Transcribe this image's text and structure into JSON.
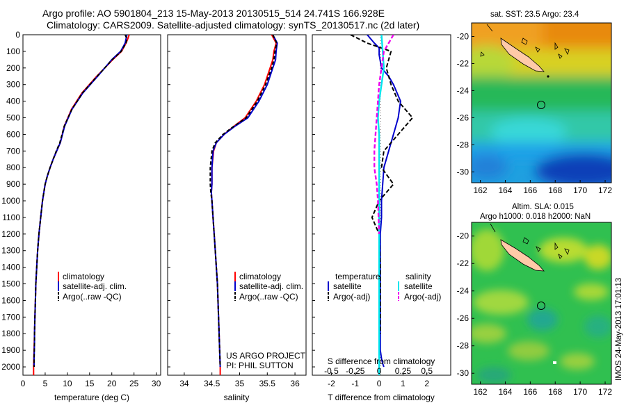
{
  "header": {
    "line1": "Argo profile: AO 5901804_213 15-May-2013 20130515_514 24.741S 166.928E",
    "line2": "Climatology: CARS2009. Satellite-adjusted climatology: synTS_20130517.nc (2d later)"
  },
  "colors": {
    "climatology": "#ff0000",
    "satellite": "#0000cc",
    "argo": "#000000",
    "salinity_sat": "#00e5ee",
    "salinity_argo": "#ee00ee"
  },
  "depth_axis": {
    "ticks": [
      "0",
      "100",
      "200",
      "300",
      "400",
      "500",
      "600",
      "700",
      "800",
      "900",
      "1000",
      "1100",
      "1200",
      "1300",
      "1400",
      "1500",
      "1600",
      "1700",
      "1800",
      "1900",
      "2000"
    ],
    "ylim": [
      0,
      2050
    ]
  },
  "legend": {
    "climatology": "climatology",
    "satellite": "satellite-adj. clim.",
    "argo": "Argo(..raw -QC)"
  },
  "diff_legend": {
    "temperature_title": "temperature",
    "salinity_title": "salinity",
    "t_sat": "satellite",
    "t_argo": "Argo(-adj)",
    "s_sat": "satellite",
    "s_argo": "Argo(-adj)"
  },
  "credits": {
    "project": "US ARGO PROJECT",
    "pi": "PI: PHIL SUTTON"
  },
  "footer": "IMOS 24-May-2013 17:01:13",
  "map_top": {
    "title": "sat. SST: 23.5 Argo: 23.4"
  },
  "map_bottom": {
    "title1": "Altim. SLA: 0.015",
    "title2": "Argo h1000: 0.018 h2000: NaN"
  },
  "chart_data": [
    {
      "type": "line",
      "xlabel": "temperature (deg C)",
      "ylabel": "",
      "xlim": [
        0,
        31
      ],
      "ylim": [
        2050,
        0
      ],
      "xticks": [
        "0",
        "5",
        "10",
        "15",
        "20",
        "25",
        "30"
      ],
      "xtick_values": [
        0,
        5,
        10,
        15,
        20,
        25,
        30
      ],
      "grid": false,
      "legend_position": "bottom-right",
      "series": [
        {
          "name": "climatology",
          "x": [
            23.9,
            23.6,
            23.2,
            22.2,
            20.2,
            16.6,
            13.3,
            10.9,
            9.3,
            8.4,
            7.6,
            6.8,
            6.1,
            5.5,
            5.0,
            4.4,
            4.0,
            3.6,
            3.3,
            3.1,
            2.9,
            2.8,
            2.7,
            2.6,
            2.55,
            2.5,
            2.45,
            2.4,
            2.4
          ],
          "y": [
            0,
            25,
            50,
            100,
            150,
            250,
            350,
            450,
            550,
            650,
            700,
            750,
            800,
            850,
            900,
            1000,
            1100,
            1200,
            1300,
            1400,
            1500,
            1600,
            1700,
            1800,
            1850,
            1900,
            1950,
            2000,
            2050
          ]
        },
        {
          "name": "satellite-adj. clim.",
          "x": [
            23.4,
            23.2,
            23.0,
            22.0,
            20.0,
            16.8,
            13.5,
            11.0,
            9.4,
            8.4,
            7.6,
            6.8,
            6.1,
            5.5,
            5.0,
            4.4,
            4.0,
            3.6,
            3.3,
            3.1,
            2.9,
            2.8,
            2.7,
            2.6,
            2.6,
            2.55,
            2.5,
            2.5
          ],
          "y": [
            0,
            25,
            50,
            100,
            150,
            250,
            350,
            450,
            550,
            650,
            700,
            750,
            800,
            850,
            900,
            1000,
            1100,
            1200,
            1300,
            1400,
            1500,
            1600,
            1700,
            1800,
            1850,
            1900,
            1950,
            2000
          ]
        },
        {
          "name": "Argo(..raw -QC)",
          "x": [
            23.0,
            23.4,
            23.2,
            22.1,
            20.1,
            16.7,
            13.4,
            11.0,
            9.3,
            8.3,
            7.5,
            6.8,
            6.1,
            5.5,
            5.0,
            4.4,
            4.0,
            3.6,
            3.3,
            3.1,
            2.9,
            2.8,
            2.7,
            2.6,
            2.6,
            2.55,
            2.5,
            2.5
          ],
          "y": [
            0,
            25,
            50,
            100,
            150,
            250,
            350,
            450,
            550,
            650,
            700,
            750,
            800,
            850,
            900,
            1000,
            1100,
            1200,
            1300,
            1400,
            1500,
            1600,
            1700,
            1800,
            1850,
            1900,
            1950,
            2000
          ]
        }
      ]
    },
    {
      "type": "line",
      "xlabel": "salinity",
      "ylabel": "",
      "xlim": [
        33.7,
        36.2
      ],
      "ylim": [
        2050,
        0
      ],
      "xticks": [
        "34",
        "34.5",
        "35",
        "35.5",
        "36"
      ],
      "xtick_values": [
        34,
        34.5,
        35,
        35.5,
        36
      ],
      "grid": false,
      "legend_position": "bottom-right",
      "series": [
        {
          "name": "climatology",
          "x": [
            35.58,
            35.66,
            35.62,
            35.6,
            35.55,
            35.45,
            35.3,
            35.1,
            34.9,
            34.72,
            34.58,
            34.53,
            34.5,
            34.5,
            34.49,
            34.5,
            34.52,
            34.54,
            34.56,
            34.58,
            34.6,
            34.61,
            34.62,
            34.63,
            34.64,
            34.65,
            34.65
          ],
          "y": [
            0,
            50,
            100,
            150,
            200,
            300,
            400,
            500,
            550,
            600,
            650,
            700,
            800,
            900,
            950,
            1000,
            1100,
            1200,
            1300,
            1400,
            1500,
            1600,
            1700,
            1800,
            1900,
            2000,
            2050
          ]
        },
        {
          "name": "satellite-adj. clim.",
          "x": [
            35.6,
            35.68,
            35.66,
            35.65,
            35.6,
            35.5,
            35.35,
            35.15,
            34.92,
            34.72,
            34.58,
            34.52,
            34.5,
            34.5,
            34.49,
            34.5,
            34.52,
            34.54,
            34.56,
            34.58,
            34.6,
            34.61,
            34.62,
            34.63,
            34.64,
            34.65
          ],
          "y": [
            0,
            50,
            100,
            150,
            200,
            300,
            400,
            500,
            550,
            600,
            650,
            700,
            800,
            900,
            950,
            1000,
            1100,
            1200,
            1300,
            1400,
            1500,
            1600,
            1700,
            1800,
            1900,
            2000
          ]
        },
        {
          "name": "Argo(..raw -QC)",
          "x": [
            35.6,
            35.67,
            35.64,
            35.62,
            35.58,
            35.47,
            35.32,
            35.12,
            34.9,
            34.7,
            34.56,
            34.5,
            34.47,
            34.47,
            34.48,
            34.5,
            34.52,
            34.54,
            34.56,
            34.58,
            34.6,
            34.61,
            34.62,
            34.63,
            34.64,
            34.65
          ],
          "y": [
            0,
            50,
            100,
            150,
            200,
            300,
            400,
            500,
            550,
            600,
            650,
            700,
            800,
            900,
            950,
            1000,
            1100,
            1200,
            1300,
            1400,
            1500,
            1600,
            1700,
            1800,
            1900,
            2000
          ]
        }
      ]
    },
    {
      "type": "line",
      "xlabel": "T difference from climatology",
      "ylabel": "",
      "xlabel_top": "S difference from climatology",
      "xlim": [
        -2.8,
        3.0
      ],
      "ylim": [
        2050,
        0
      ],
      "xticks": [
        "-2",
        "-1",
        "0",
        "1",
        "2"
      ],
      "xtick_values": [
        -2,
        -1,
        0,
        1,
        2
      ],
      "sticks_labels": [
        "-0.5",
        "-0.25",
        "0",
        "0.25",
        "0.5"
      ],
      "sticks_t_positions": [
        -2,
        -1,
        0,
        1,
        2
      ],
      "grid": false,
      "legend_position": "bottom-right",
      "series": [
        {
          "name": "temperature satellite",
          "x": [
            -0.5,
            -0.2,
            0.0,
            0.0,
            0.1,
            0.4,
            0.6,
            0.9,
            0.8,
            0.6,
            0.4,
            0.2,
            0.15,
            0.1,
            0.1,
            0.05,
            0.05,
            0.05,
            0.05,
            0.05,
            0.05,
            0.05,
            0.05,
            0.1,
            0.15,
            0.2
          ],
          "y": [
            0,
            50,
            80,
            120,
            200,
            250,
            300,
            400,
            500,
            600,
            700,
            800,
            900,
            1000,
            1100,
            1200,
            1300,
            1400,
            1500,
            1600,
            1700,
            1800,
            1900,
            1950,
            1980,
            2000
          ]
        },
        {
          "name": "temperature Argo(-adj)",
          "x": [
            -1.2,
            -0.5,
            0.5,
            0.4,
            0.3,
            0.5,
            0.8,
            1.4,
            0.8,
            0.2,
            0.1,
            0.6,
            0.0,
            -0.3,
            0.0,
            0.05,
            0.05,
            0.05
          ],
          "y": [
            0,
            50,
            100,
            150,
            200,
            300,
            400,
            500,
            600,
            700,
            800,
            900,
            1000,
            1100,
            1200,
            1400,
            1600,
            1800
          ]
        },
        {
          "name": "salinity satellite",
          "x": [
            0.1,
            0.15,
            0.2,
            0.1,
            0.0,
            -0.05,
            0.0,
            0.0,
            0.0,
            0.0,
            0.0,
            0.0,
            0.0,
            0.0,
            0.0,
            0.0,
            0.0
          ],
          "y": [
            0,
            100,
            200,
            300,
            400,
            500,
            600,
            700,
            800,
            900,
            1000,
            1200,
            1400,
            1600,
            1800,
            1950,
            2050
          ]
        },
        {
          "name": "salinity Argo(-adj)",
          "x": [
            0.6,
            0.4,
            0.2,
            0.1,
            0.0,
            -0.1,
            -0.2,
            -0.2,
            -0.1,
            -0.05,
            0.0
          ],
          "y": [
            0,
            50,
            100,
            200,
            300,
            500,
            700,
            800,
            900,
            1000,
            1200
          ]
        }
      ]
    },
    {
      "type": "heatmap",
      "title": "sat. SST: 23.5 Argo: 23.4",
      "xlim": [
        161.3,
        172.5
      ],
      "ylim": [
        -30.8,
        -19.0
      ],
      "xticks": [
        "162",
        "164",
        "166",
        "168",
        "170",
        "172"
      ],
      "xtick_values": [
        162,
        164,
        166,
        168,
        170,
        172
      ],
      "yticks": [
        "-20",
        "-22",
        "-24",
        "-26",
        "-28",
        "-30"
      ],
      "ytick_values": [
        -20,
        -22,
        -24,
        -26,
        -28,
        -30
      ],
      "argo_position": [
        166.928,
        -24.741
      ]
    },
    {
      "type": "heatmap",
      "title": "Altim. SLA: 0.015",
      "subtitle": "Argo h1000: 0.018 h2000: NaN",
      "xlim": [
        161.3,
        172.5
      ],
      "ylim": [
        -30.8,
        -19.0
      ],
      "xticks": [
        "162",
        "164",
        "166",
        "168",
        "170",
        "172"
      ],
      "xtick_values": [
        162,
        164,
        166,
        168,
        170,
        172
      ],
      "yticks": [
        "-20",
        "-22",
        "-24",
        "-26",
        "-28",
        "-30"
      ],
      "ytick_values": [
        -20,
        -22,
        -24,
        -26,
        -28,
        -30
      ],
      "argo_position": [
        166.928,
        -24.741
      ]
    }
  ]
}
